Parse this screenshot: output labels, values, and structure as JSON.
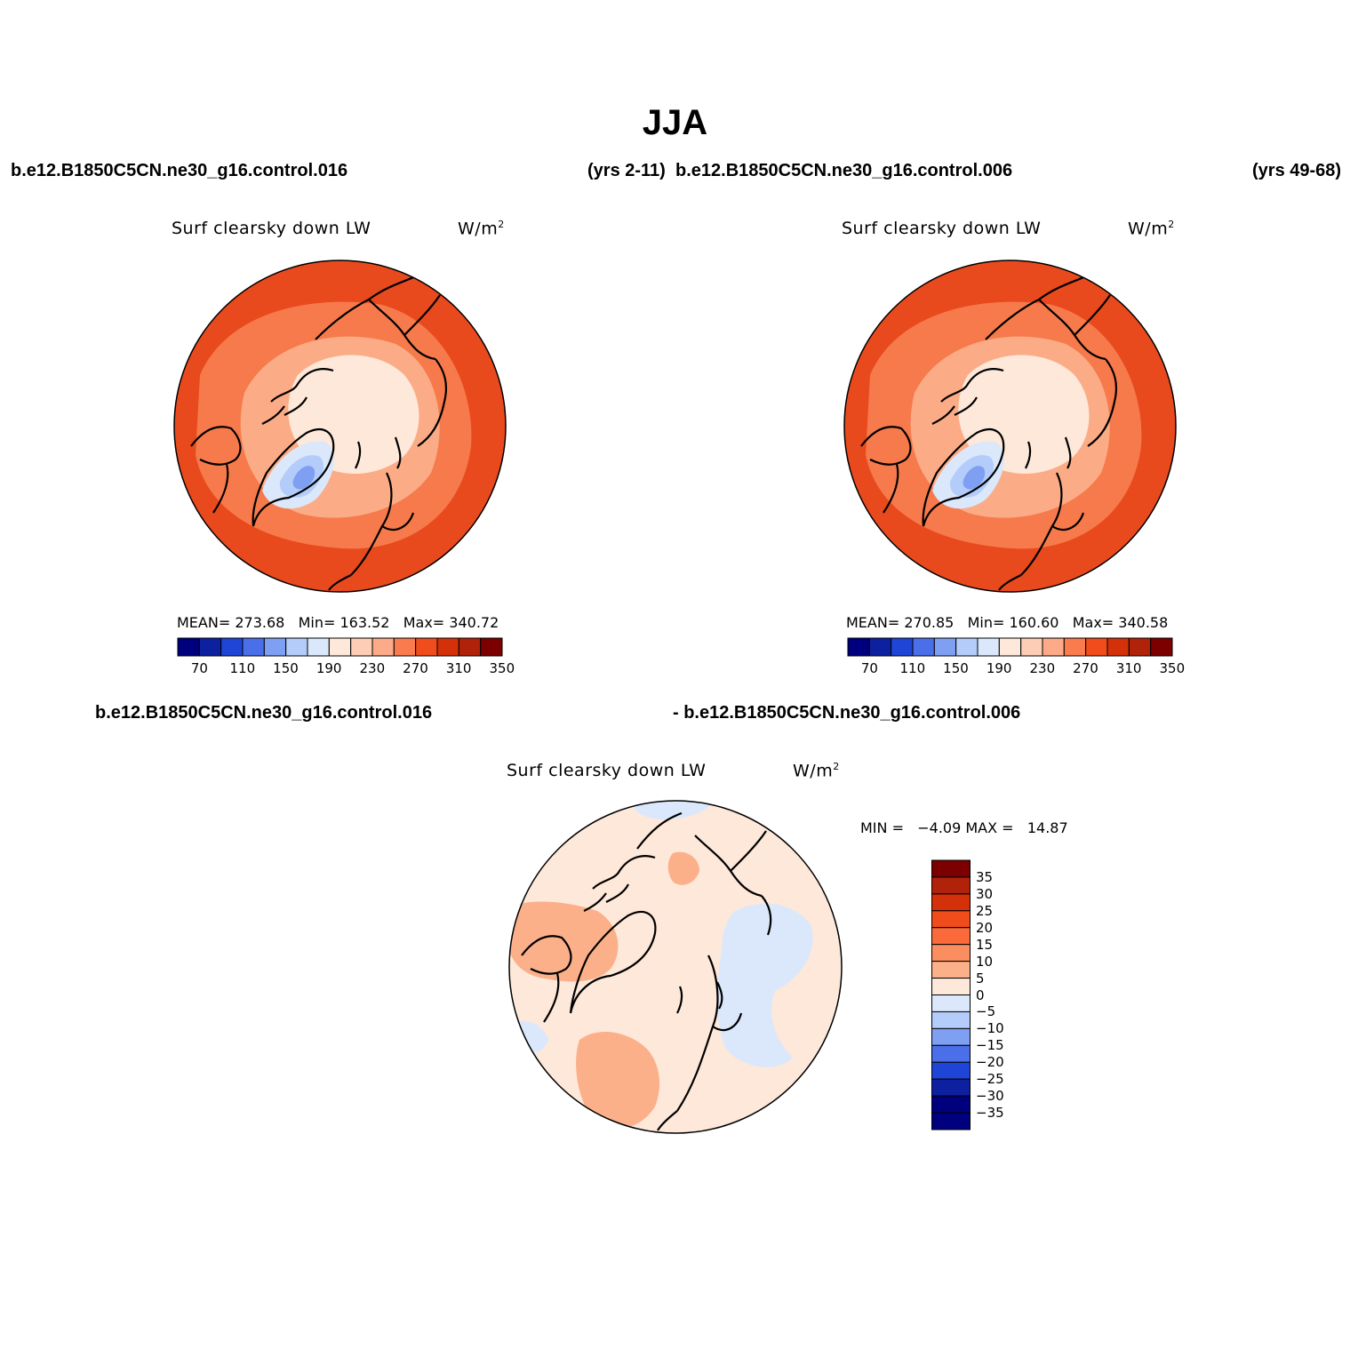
{
  "title": "JJA",
  "top_left": {
    "case_name": "b.e12.B1850C5CN.ne30_g16.control.016",
    "years": "(yrs 2-11)",
    "variable": "Surf clearsky down LW",
    "units_base": "W/m",
    "units_exp": "2",
    "mean_label": "MEAN=",
    "mean": "273.68",
    "min_label": "Min=",
    "min": "163.52",
    "max_label": "Max=",
    "max": "340.72"
  },
  "top_right": {
    "case_name": "b.e12.B1850C5CN.ne30_g16.control.006",
    "years": "(yrs 49-68)",
    "variable": "Surf clearsky down LW",
    "units_base": "W/m",
    "units_exp": "2",
    "mean_label": "MEAN=",
    "mean": "270.85",
    "min_label": "Min=",
    "min": "160.60",
    "max_label": "Max=",
    "max": "340.58"
  },
  "diff": {
    "case_a": "b.e12.B1850C5CN.ne30_g16.control.016",
    "case_b": "- b.e12.B1850C5CN.ne30_g16.control.006",
    "variable": "Surf clearsky down LW",
    "units_base": "W/m",
    "units_exp": "2",
    "min_label": "MIN =",
    "min": "−4.09",
    "max_label": "MAX =",
    "max": "14.87"
  },
  "abs_colorbar": {
    "tick_labels": [
      "70",
      "110",
      "150",
      "190",
      "230",
      "270",
      "310",
      "350"
    ],
    "colors": [
      "#00007f",
      "#0d21a0",
      "#1f45d6",
      "#4a6fe8",
      "#7e9ff2",
      "#b3ccf9",
      "#dbe8fc",
      "#fde8da",
      "#fdcdb6",
      "#fcaa87",
      "#fa7c4e",
      "#f04c1c",
      "#d4300a",
      "#b0220a",
      "#7c0000"
    ]
  },
  "diff_colorbar": {
    "tick_labels": [
      "35",
      "30",
      "25",
      "20",
      "15",
      "10",
      "5",
      "0",
      "−5",
      "−10",
      "−15",
      "−20",
      "−25",
      "−30",
      "−35"
    ],
    "colors": [
      "#7c0000",
      "#b0220a",
      "#d4300a",
      "#f04c1c",
      "#fa6a3a",
      "#fb8e60",
      "#fcb08a",
      "#fde8da",
      "#dbe8fc",
      "#b3ccf9",
      "#7e9ff2",
      "#4a6fe8",
      "#1f45d6",
      "#0d21a0",
      "#00007f",
      "#00007f"
    ]
  },
  "map_colors": {
    "outer": "#e84a1e",
    "mid": "#f67a4b",
    "inner": "#fbac86",
    "core": "#fde8da",
    "ice_light": "#dbe8fc",
    "ice_mid": "#b3ccf9",
    "ice_core": "#7e9ff2",
    "diff_base": "#fde8da",
    "diff_warm": "#fcb08a",
    "diff_cool": "#dbe8fc"
  }
}
